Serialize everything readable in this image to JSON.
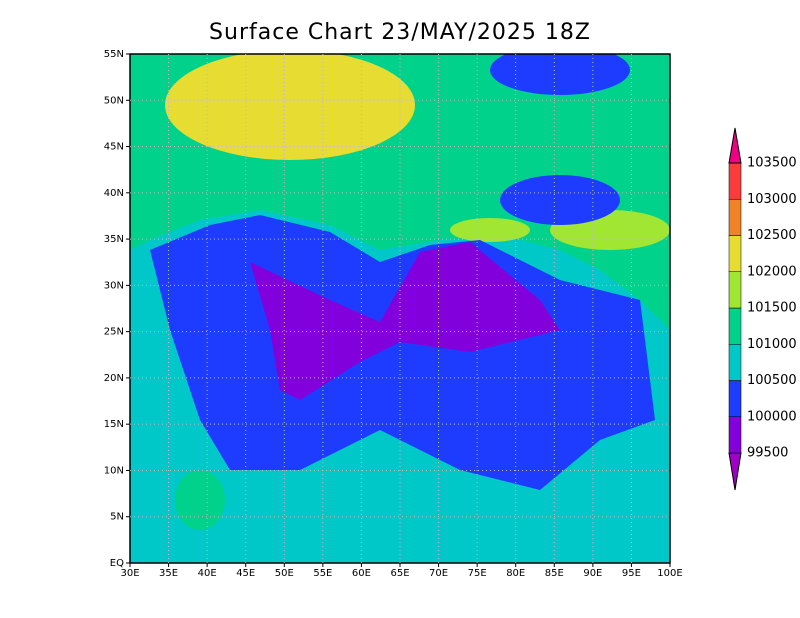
{
  "title": "Surface Chart 23/MAY/2025 18Z",
  "map": {
    "xlim": [
      30,
      100
    ],
    "ylim": [
      0,
      55
    ],
    "xticks": [
      {
        "value": 30,
        "label": "30E"
      },
      {
        "value": 35,
        "label": "35E"
      },
      {
        "value": 40,
        "label": "40E"
      },
      {
        "value": 45,
        "label": "45E"
      },
      {
        "value": 50,
        "label": "50E"
      },
      {
        "value": 55,
        "label": "55E"
      },
      {
        "value": 60,
        "label": "60E"
      },
      {
        "value": 65,
        "label": "65E"
      },
      {
        "value": 70,
        "label": "70E"
      },
      {
        "value": 75,
        "label": "75E"
      },
      {
        "value": 80,
        "label": "80E"
      },
      {
        "value": 85,
        "label": "85E"
      },
      {
        "value": 90,
        "label": "90E"
      },
      {
        "value": 95,
        "label": "95E"
      },
      {
        "value": 100,
        "label": "100E"
      }
    ],
    "yticks": [
      {
        "value": 0,
        "label": "EQ"
      },
      {
        "value": 5,
        "label": "5N"
      },
      {
        "value": 10,
        "label": "10N"
      },
      {
        "value": 15,
        "label": "15N"
      },
      {
        "value": 20,
        "label": "20N"
      },
      {
        "value": 25,
        "label": "25N"
      },
      {
        "value": 30,
        "label": "30N"
      },
      {
        "value": 35,
        "label": "35N"
      },
      {
        "value": 40,
        "label": "40N"
      },
      {
        "value": 45,
        "label": "45N"
      },
      {
        "value": 50,
        "label": "50N"
      },
      {
        "value": 55,
        "label": "55N"
      }
    ],
    "grid": true
  },
  "colorbar": {
    "levels": [
      99500,
      100000,
      100500,
      101000,
      101500,
      102000,
      102500,
      103000,
      103500
    ],
    "colors": [
      "#a000c8",
      "#8200dc",
      "#1e3cff",
      "#00c8c8",
      "#00d28c",
      "#a0e632",
      "#e6dc32",
      "#f08228",
      "#fa3c3c",
      "#f00082"
    ]
  }
}
